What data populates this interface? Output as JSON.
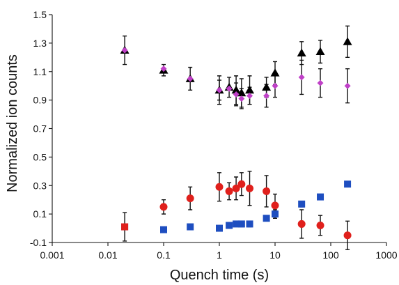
{
  "chart_data": {
    "type": "scatter",
    "title": "",
    "xlabel": "Quench time (s)",
    "ylabel": "Normalized ion counts",
    "xscale": "log",
    "xlim": [
      0.001,
      1000
    ],
    "ylim": [
      -0.1,
      1.5
    ],
    "x_ticks": [
      0.001,
      0.01,
      0.1,
      1,
      10,
      100,
      1000
    ],
    "x_tick_labels": [
      "0.001",
      "0.01",
      "0.1",
      "1",
      "10",
      "100",
      "1000"
    ],
    "y_ticks": [
      -0.1,
      0.1,
      0.3,
      0.5,
      0.7,
      0.9,
      1.1,
      1.3,
      1.5
    ],
    "y_tick_labels": [
      "-0.1",
      "0.1",
      "0.3",
      "0.5",
      "0.7",
      "0.9",
      "1.1",
      "1.3",
      "1.5"
    ],
    "grid": false,
    "legend": "none",
    "series": [
      {
        "marker": "triangle",
        "color": "#000000",
        "points": [
          {
            "x": 0.02,
            "y": 1.25,
            "err": 0.1
          },
          {
            "x": 0.1,
            "y": 1.11,
            "err": 0.04
          },
          {
            "x": 0.3,
            "y": 1.05,
            "err": 0.08
          },
          {
            "x": 1,
            "y": 0.97,
            "err": 0.1
          },
          {
            "x": 1.5,
            "y": 0.99,
            "err": 0.07
          },
          {
            "x": 2,
            "y": 0.97,
            "err": 0.1
          },
          {
            "x": 2.5,
            "y": 0.95,
            "err": 0.1
          },
          {
            "x": 3.5,
            "y": 0.97,
            "err": 0.1
          },
          {
            "x": 7,
            "y": 0.99,
            "err": 0.07
          },
          {
            "x": 10,
            "y": 1.09,
            "err": 0.08
          },
          {
            "x": 30,
            "y": 1.23,
            "err": 0.08
          },
          {
            "x": 65,
            "y": 1.24,
            "err": 0.08
          },
          {
            "x": 200,
            "y": 1.31,
            "err": 0.11
          }
        ]
      },
      {
        "marker": "diamond",
        "color": "#c040c8",
        "points": [
          {
            "x": 0.02,
            "y": 1.25,
            "err": 0
          },
          {
            "x": 0.1,
            "y": 1.12,
            "err": 0
          },
          {
            "x": 0.3,
            "y": 1.05,
            "err": 0
          },
          {
            "x": 1,
            "y": 0.97,
            "err": 0.07
          },
          {
            "x": 1.5,
            "y": 0.98,
            "err": 0
          },
          {
            "x": 2,
            "y": 0.94,
            "err": 0.08
          },
          {
            "x": 2.5,
            "y": 0.91,
            "err": 0.07
          },
          {
            "x": 3.5,
            "y": 0.93,
            "err": 0.06
          },
          {
            "x": 7,
            "y": 0.93,
            "err": 0.08
          },
          {
            "x": 10,
            "y": 1.0,
            "err": 0.08
          },
          {
            "x": 30,
            "y": 1.06,
            "err": 0.12
          },
          {
            "x": 65,
            "y": 1.02,
            "err": 0.1
          },
          {
            "x": 200,
            "y": 1.0,
            "err": 0.12
          }
        ]
      },
      {
        "marker": "circle",
        "color": "#e0201c",
        "points": [
          {
            "x": 0.1,
            "y": 0.15,
            "err": 0.05
          },
          {
            "x": 0.3,
            "y": 0.21,
            "err": 0.08
          },
          {
            "x": 1,
            "y": 0.29,
            "err": 0.1
          },
          {
            "x": 1.5,
            "y": 0.26,
            "err": 0.06
          },
          {
            "x": 2,
            "y": 0.28,
            "err": 0.08
          },
          {
            "x": 2.5,
            "y": 0.31,
            "err": 0.08
          },
          {
            "x": 3.5,
            "y": 0.28,
            "err": 0.12
          },
          {
            "x": 7,
            "y": 0.26,
            "err": 0.11
          },
          {
            "x": 10,
            "y": 0.16,
            "err": 0.08
          },
          {
            "x": 30,
            "y": 0.03,
            "err": 0.1
          },
          {
            "x": 65,
            "y": 0.02,
            "err": 0.07
          },
          {
            "x": 200,
            "y": -0.05,
            "err": 0.1
          }
        ]
      },
      {
        "marker": "square",
        "color": "#1e4ec0",
        "points": [
          {
            "x": 0.02,
            "y": 0.01,
            "err": 0.1
          },
          {
            "x": 0.1,
            "y": -0.01,
            "err": 0
          },
          {
            "x": 0.3,
            "y": 0.01,
            "err": 0
          },
          {
            "x": 1,
            "y": 0.0,
            "err": 0
          },
          {
            "x": 1.5,
            "y": 0.02,
            "err": 0
          },
          {
            "x": 2,
            "y": 0.03,
            "err": 0
          },
          {
            "x": 2.5,
            "y": 0.03,
            "err": 0.02
          },
          {
            "x": 3.5,
            "y": 0.03,
            "err": 0.02
          },
          {
            "x": 7,
            "y": 0.07,
            "err": 0
          },
          {
            "x": 10,
            "y": 0.1,
            "err": 0.03
          },
          {
            "x": 30,
            "y": 0.17,
            "err": 0.02
          },
          {
            "x": 65,
            "y": 0.22,
            "err": 0
          },
          {
            "x": 200,
            "y": 0.31,
            "err": 0
          }
        ]
      },
      {
        "marker": "square",
        "color": "#e0201c",
        "points": [
          {
            "x": 0.02,
            "y": 0.01,
            "err": 0
          }
        ]
      }
    ]
  }
}
